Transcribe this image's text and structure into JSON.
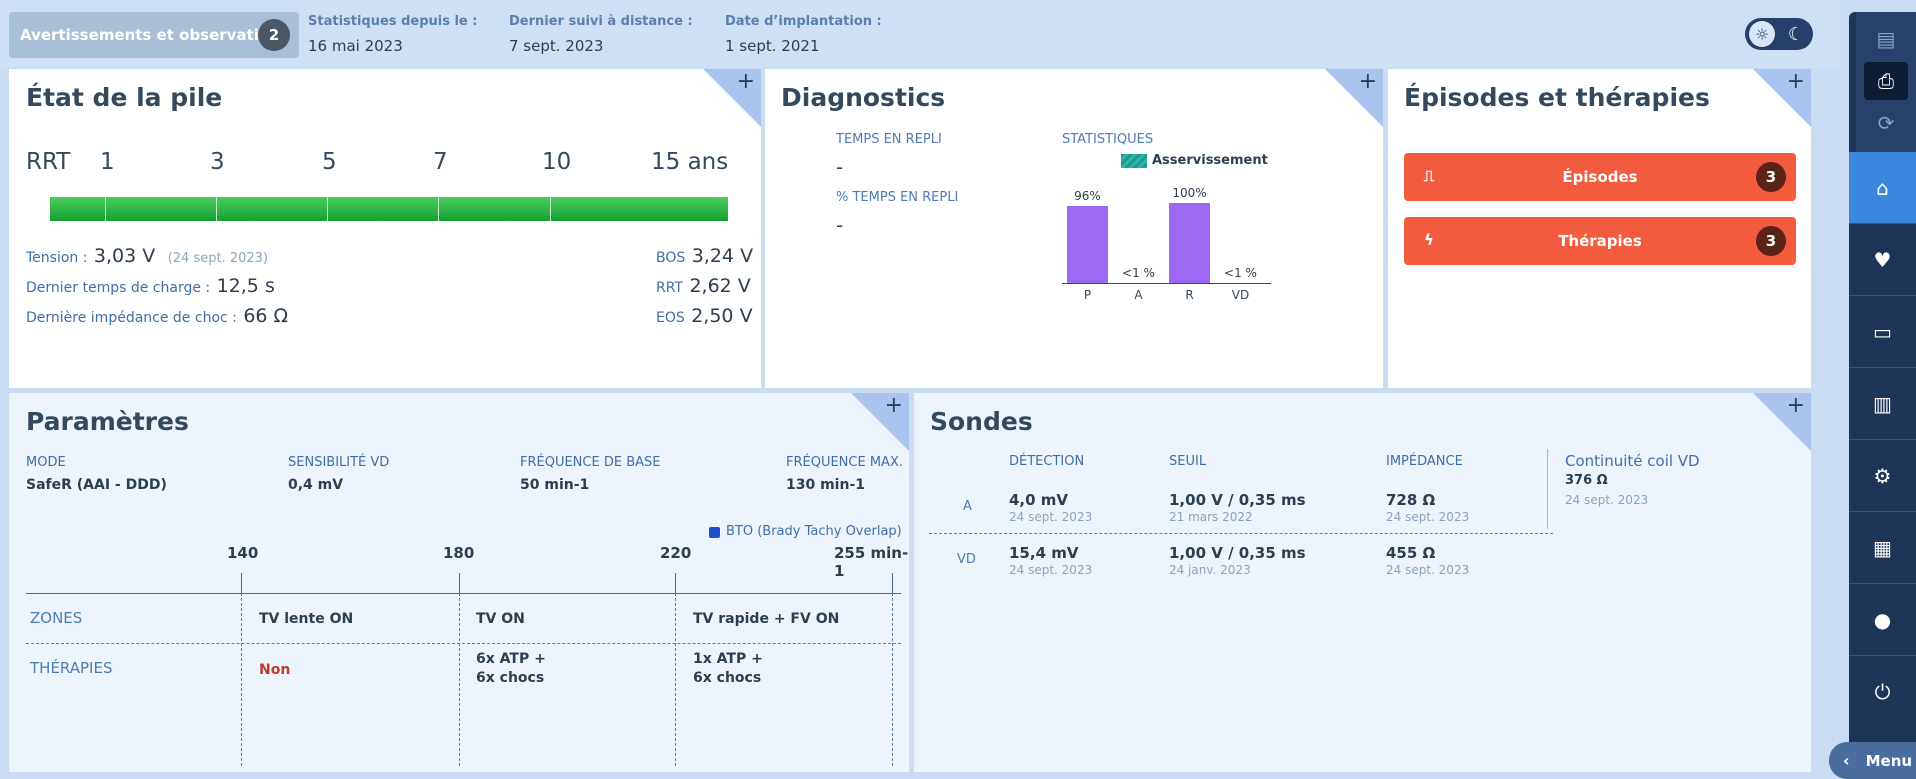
{
  "header": {
    "warnings_label": "Avertissements et observations",
    "warnings_count": "2",
    "stats": [
      {
        "key": "Statistiques depuis le :",
        "value": "16 mai 2023"
      },
      {
        "key": "Dernier suivi à distance :",
        "value": "7 sept. 2023"
      },
      {
        "key": "Date d’implantation :",
        "value": "1 sept. 2021"
      }
    ],
    "theme_icons": {
      "light": "sun-icon",
      "dark": "moon-icon"
    }
  },
  "battery": {
    "title": "État de la pile",
    "scale": [
      "RRT",
      "1",
      "3",
      "5",
      "7",
      "10",
      "15 ans"
    ],
    "tension_label": "Tension :",
    "tension_value": "3,03 V",
    "tension_date": "(24 sept. 2023)",
    "charge_label": "Dernier temps de charge :",
    "charge_value": "12,5 s",
    "impedance_label": "Dernière impédance de choc :",
    "impedance_value": "66 Ω",
    "bos_label": "BOS",
    "bos_value": "3,24 V",
    "rrt_label": "RRT",
    "rrt_value": "2,62 V",
    "eos_label": "EOS",
    "eos_value": "2,50 V"
  },
  "diagnostics": {
    "title": "Diagnostics",
    "repli_label": "TEMPS EN REPLI",
    "repli_value": "-",
    "repli_pct_label": "% TEMPS EN REPLI",
    "repli_pct_value": "-",
    "stats_label": "STATISTIQUES",
    "legend": "Asservissement",
    "accent_color": "#9b69f2"
  },
  "chart_data": {
    "type": "bar",
    "categories": [
      "P",
      "A",
      "R",
      "VD"
    ],
    "values": [
      96,
      0.5,
      100,
      0.5
    ],
    "value_labels": [
      "96%",
      "<1 %",
      "100%",
      "<1 %"
    ],
    "ylim": [
      0,
      100
    ]
  },
  "episodes": {
    "title": "Épisodes et thérapies",
    "episodes_label": "Épisodes",
    "episodes_count": "3",
    "therapies_label": "Thérapies",
    "therapies_count": "3",
    "button_color": "#f25b3d"
  },
  "parametres": {
    "title": "Paramètres",
    "fields": [
      {
        "key": "MODE",
        "value": "SafeR (AAI - DDD)"
      },
      {
        "key": "SENSIBILITÉ VD",
        "value": "0,4 mV"
      },
      {
        "key": "FRÉQUENCE DE BASE",
        "value": "50 min-1"
      },
      {
        "key": "FRÉQUENCE MAX.",
        "value": "130 min-1"
      }
    ],
    "bto_legend": "BTO (Brady Tachy Overlap)",
    "axis": [
      "140",
      "180",
      "220",
      "255 min-1"
    ],
    "zones_label": "ZONES",
    "therapies_label": "THÉRAPIES",
    "zones": [
      "TV lente ON",
      "TV ON",
      "TV rapide + FV ON"
    ],
    "therapies": [
      {
        "line1": "Non",
        "line2": ""
      },
      {
        "line1": "6x ATP  +",
        "line2": "6x chocs"
      },
      {
        "line1": "1x ATP  +",
        "line2": "6x chocs"
      }
    ],
    "non_color": "#c0392b"
  },
  "sondes": {
    "title": "Sondes",
    "headers": [
      "DÉTECTION",
      "SEUIL",
      "IMPÉDANCE"
    ],
    "rows": [
      {
        "label": "A",
        "detection": "4,0 mV",
        "detection_date": "24 sept. 2023",
        "seuil": "1,00 V / 0,35 ms",
        "seuil_date": "21 mars 2022",
        "impedance": "728 Ω",
        "impedance_date": "24 sept. 2023"
      },
      {
        "label": "VD",
        "detection": "15,4 mV",
        "detection_date": "24 sept. 2023",
        "seuil": "1,00 V / 0,35 ms",
        "seuil_date": "24 janv. 2023",
        "impedance": "455 Ω",
        "impedance_date": "24 sept. 2023"
      }
    ],
    "coil_label": "Continuité coil VD",
    "coil_value": "376 Ω",
    "coil_date": "24 sept. 2023"
  },
  "sidebar": {
    "menu_label": "Menu",
    "icons": [
      "document-icon",
      "print-icon",
      "sync-icon",
      "home-icon",
      "heart-pulse-icon",
      "monitor-icon",
      "chart-icon",
      "gear-icon",
      "report-icon",
      "user-icon",
      "power-icon"
    ]
  }
}
